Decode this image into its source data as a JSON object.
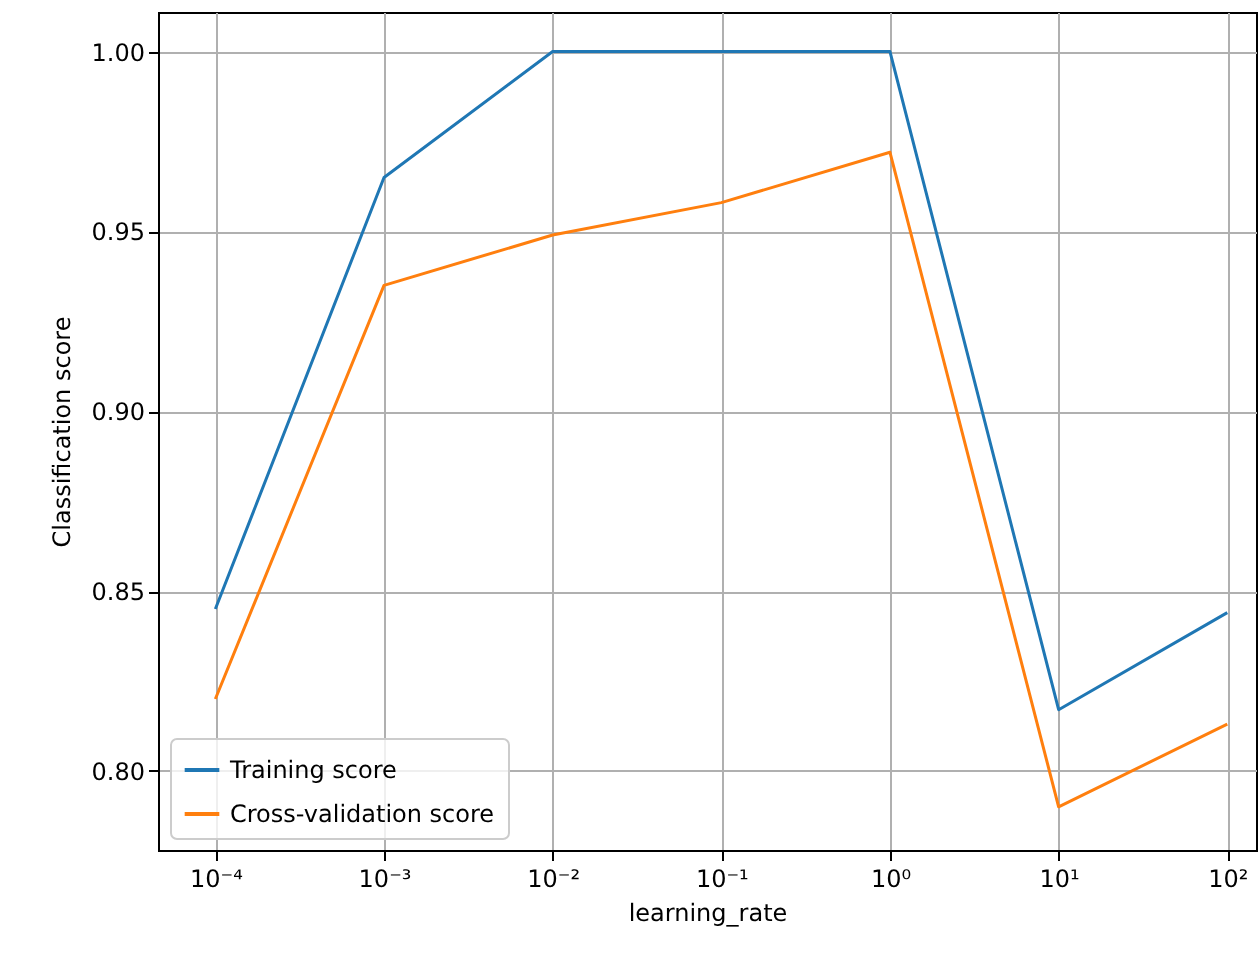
{
  "chart_data": {
    "type": "line",
    "xlabel": "learning_rate",
    "ylabel": "Classification score",
    "x": [
      0.0001,
      0.001,
      0.01,
      0.1,
      1,
      10,
      100
    ],
    "series": [
      {
        "name": "Training score",
        "color": "#1f77b4",
        "values": [
          0.845,
          0.965,
          1.0,
          1.0,
          1.0,
          0.817,
          0.844
        ]
      },
      {
        "name": "Cross-validation score",
        "color": "#ff7f0e",
        "values": [
          0.82,
          0.935,
          0.949,
          0.958,
          0.972,
          0.79,
          0.813
        ]
      }
    ],
    "log": "x",
    "xlim": [
      4.57e-05,
      148
    ],
    "xticks": [
      {
        "value": 0.0001,
        "label": "10⁻⁴"
      },
      {
        "value": 0.001,
        "label": "10⁻³"
      },
      {
        "value": 0.01,
        "label": "10⁻²"
      },
      {
        "value": 0.1,
        "label": "10⁻¹"
      },
      {
        "value": 1,
        "label": "10⁰"
      },
      {
        "value": 10,
        "label": "10¹"
      },
      {
        "value": 100,
        "label": "10²"
      }
    ],
    "ylim": [
      0.778,
      1.011
    ],
    "yticks": [
      {
        "value": 0.8,
        "label": "0.80"
      },
      {
        "value": 0.85,
        "label": "0.85"
      },
      {
        "value": 0.9,
        "label": "0.90"
      },
      {
        "value": 0.95,
        "label": "0.95"
      },
      {
        "value": 1.0,
        "label": "1.00"
      }
    ],
    "grid": true,
    "legend": "bottom left"
  }
}
